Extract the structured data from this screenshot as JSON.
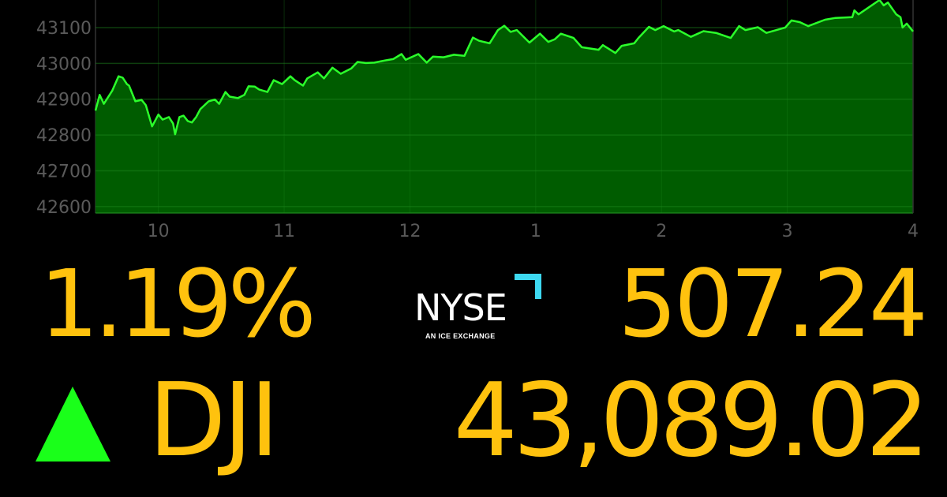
{
  "quote": {
    "percent_change": "1.19%",
    "point_change": "507.24",
    "symbol": "DJI",
    "last": "43,089.02",
    "direction": "up",
    "direction_icon": "triangle-up-icon"
  },
  "logo": {
    "name": "NYSE",
    "tagline": "AN ICE EXCHANGE",
    "accent": "#3dd8f0"
  },
  "colors": {
    "text": "#ffc20e",
    "up": "#1aff1a",
    "line": "#2bff2b",
    "fill": "#005c00",
    "axis_text": "#5a5a5a"
  },
  "chart_data": {
    "type": "area",
    "title": "",
    "xlabel": "",
    "ylabel": "",
    "ylim": [
      42582,
      43177
    ],
    "xlim": [
      "9:30",
      "4:00"
    ],
    "grid": true,
    "yticks": [
      42600,
      42700,
      42800,
      42900,
      43000,
      43100
    ],
    "xticks": [
      {
        "label": "10",
        "time": "10:00"
      },
      {
        "label": "11",
        "time": "11:00"
      },
      {
        "label": "12",
        "time": "12:00"
      },
      {
        "label": "1",
        "time": "1:00"
      },
      {
        "label": "2",
        "time": "2:00"
      },
      {
        "label": "3",
        "time": "3:00"
      },
      {
        "label": "4",
        "time": "4:00"
      }
    ],
    "series": [
      {
        "points": [
          [
            "9:30",
            42868
          ],
          [
            "9:32",
            42912
          ],
          [
            "9:34",
            42887
          ],
          [
            "9:38",
            42924
          ],
          [
            "9:41",
            42964
          ],
          [
            "9:43",
            42960
          ],
          [
            "9:45",
            42942
          ],
          [
            "9:46",
            42938
          ],
          [
            "9:49",
            42894
          ],
          [
            "9:52",
            42898
          ],
          [
            "9:54",
            42883
          ],
          [
            "9:57",
            42824
          ],
          [
            "10:00",
            42857
          ],
          [
            "10:02",
            42843
          ],
          [
            "10:05",
            42850
          ],
          [
            "10:07",
            42832
          ],
          [
            "10:08",
            42802
          ],
          [
            "10:10",
            42850
          ],
          [
            "10:12",
            42854
          ],
          [
            "10:14",
            42839
          ],
          [
            "10:16",
            42835
          ],
          [
            "10:18",
            42850
          ],
          [
            "10:20",
            42872
          ],
          [
            "10:24",
            42894
          ],
          [
            "10:27",
            42899
          ],
          [
            "10:29",
            42887
          ],
          [
            "10:32",
            42920
          ],
          [
            "10:34",
            42907
          ],
          [
            "10:38",
            42903
          ],
          [
            "10:41",
            42912
          ],
          [
            "10:43",
            42936
          ],
          [
            "10:46",
            42935
          ],
          [
            "10:48",
            42927
          ],
          [
            "10:52",
            42920
          ],
          [
            "10:55",
            42953
          ],
          [
            "10:59",
            42942
          ],
          [
            "11:03",
            42964
          ],
          [
            "11:05",
            42953
          ],
          [
            "11:09",
            42938
          ],
          [
            "11:11",
            42958
          ],
          [
            "11:16",
            42975
          ],
          [
            "11:19",
            42958
          ],
          [
            "11:23",
            42988
          ],
          [
            "11:27",
            42971
          ],
          [
            "11:32",
            42986
          ],
          [
            "11:35",
            43004
          ],
          [
            "11:39",
            43001
          ],
          [
            "11:43",
            43002
          ],
          [
            "11:48",
            43008
          ],
          [
            "11:52",
            43012
          ],
          [
            "11:56",
            43026
          ],
          [
            "11:58",
            43010
          ],
          [
            "12:04",
            43026
          ],
          [
            "12:08",
            43002
          ],
          [
            "12:11",
            43019
          ],
          [
            "12:16",
            43017
          ],
          [
            "12:21",
            43024
          ],
          [
            "12:26",
            43021
          ],
          [
            "12:30",
            43072
          ],
          [
            "12:33",
            43063
          ],
          [
            "12:38",
            43056
          ],
          [
            "12:42",
            43093
          ],
          [
            "12:45",
            43105
          ],
          [
            "12:48",
            43088
          ],
          [
            "12:51",
            43093
          ],
          [
            "12:57",
            43058
          ],
          [
            "1:02",
            43083
          ],
          [
            "1:06",
            43060
          ],
          [
            "1:09",
            43067
          ],
          [
            "1:12",
            43083
          ],
          [
            "1:18",
            43071
          ],
          [
            "1:22",
            43045
          ],
          [
            "1:30",
            43038
          ],
          [
            "1:32",
            43051
          ],
          [
            "1:38",
            43029
          ],
          [
            "1:41",
            43049
          ],
          [
            "1:47",
            43056
          ],
          [
            "1:49",
            43071
          ],
          [
            "1:54",
            43102
          ],
          [
            "1:57",
            43093
          ],
          [
            "2:01",
            43104
          ],
          [
            "2:06",
            43089
          ],
          [
            "2:08",
            43093
          ],
          [
            "2:14",
            43074
          ],
          [
            "2:20",
            43090
          ],
          [
            "2:26",
            43085
          ],
          [
            "2:33",
            43071
          ],
          [
            "2:37",
            43104
          ],
          [
            "2:40",
            43093
          ],
          [
            "2:46",
            43101
          ],
          [
            "2:50",
            43085
          ],
          [
            "2:59",
            43100
          ],
          [
            "3:02",
            43120
          ],
          [
            "3:06",
            43115
          ],
          [
            "3:10",
            43104
          ],
          [
            "3:18",
            43122
          ],
          [
            "3:23",
            43127
          ],
          [
            "3:31",
            43129
          ],
          [
            "3:32",
            43148
          ],
          [
            "3:34",
            43137
          ],
          [
            "3:44",
            43177
          ],
          [
            "3:46",
            43162
          ],
          [
            "3:48",
            43170
          ],
          [
            "3:52",
            43137
          ],
          [
            "3:54",
            43129
          ],
          [
            "3:55",
            43100
          ],
          [
            "3:57",
            43111
          ],
          [
            "4:00",
            43089
          ]
        ]
      }
    ]
  }
}
